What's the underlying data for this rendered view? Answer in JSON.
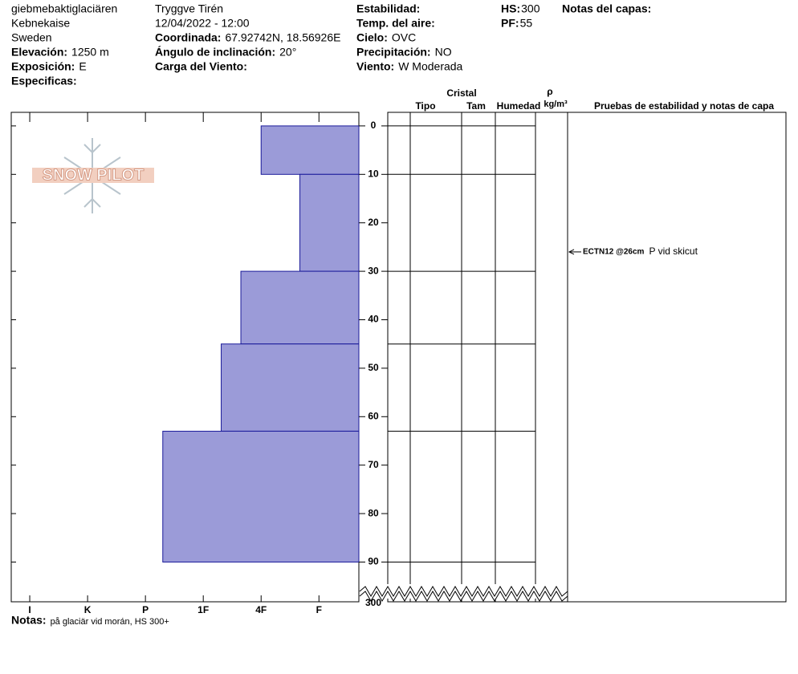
{
  "header": {
    "col1": [
      {
        "text": "giebmebaktiglaciären"
      },
      {
        "text": "Kebnekaise"
      },
      {
        "text": "Sweden"
      },
      {
        "label": "Elevación:",
        "value": "1250 m"
      },
      {
        "label": "Exposición:",
        "value": "E"
      },
      {
        "label": "Especificas:"
      }
    ],
    "col2": [
      {
        "text": "Tryggve  Tirén"
      },
      {
        "text": "12/04/2022 - 12:00"
      },
      {
        "label": "Coordinada:",
        "value": "67.92742N, 18.56926E"
      },
      {
        "label": "Ángulo de inclinación:",
        "value": "20°"
      },
      {
        "label": "Carga del Viento:"
      }
    ],
    "col3": [
      {
        "label": "Estabilidad:"
      },
      {
        "label": "Temp. del aire:"
      },
      {
        "label": "Cielo:",
        "value": "OVC"
      },
      {
        "label": "Precipitación:",
        "value": "NO"
      },
      {
        "label": "Viento:",
        "value": "W Moderada"
      }
    ],
    "col4": [
      {
        "label": "HS:",
        "value": "300"
      },
      {
        "label": "PF:",
        "value": "55"
      }
    ],
    "col5": [
      {
        "label": "Notas del capas:"
      }
    ]
  },
  "profile": {
    "logo": "SNOW PILOT",
    "hardness_lim": [
      6.32,
      0.31
    ],
    "hardness_ticks": [
      {
        "value": 6,
        "label": "I"
      },
      {
        "value": 5,
        "label": "K"
      },
      {
        "value": 4,
        "label": "P"
      },
      {
        "value": 3,
        "label": "1F"
      },
      {
        "value": 2,
        "label": "4F"
      },
      {
        "value": 1,
        "label": "F"
      }
    ],
    "depth_lim": [
      -2.8,
      98.2
    ],
    "depth_ticks": [
      0,
      10,
      20,
      30,
      40,
      50,
      60,
      70,
      80,
      90
    ],
    "ground_depth": 300,
    "layers": [
      {
        "top": 0,
        "bottom": 10,
        "hardness": 2
      },
      {
        "top": 10,
        "bottom": 30,
        "hardness": 1.33
      },
      {
        "top": 30,
        "bottom": 45,
        "hardness": 2.35
      },
      {
        "top": 45,
        "bottom": 63,
        "hardness": 2.69
      },
      {
        "top": 63,
        "bottom": 90,
        "hardness": 3.7
      }
    ]
  },
  "table": {
    "headers": {
      "cristal": "Cristal",
      "tipo": "Tipo",
      "tam": "Tam",
      "humedad": "Humedad",
      "rho": "ρ",
      "density_unit": "kg/m³",
      "tests": "Pruebas de estabilidad y notas de capa"
    }
  },
  "tests": [
    {
      "depth": 26,
      "label": "ECTN12 @26cm",
      "note": "P vid skicut"
    }
  ],
  "footer": {
    "label": "Notas:",
    "text": "på glaciär vid morán, HS 300+"
  }
}
